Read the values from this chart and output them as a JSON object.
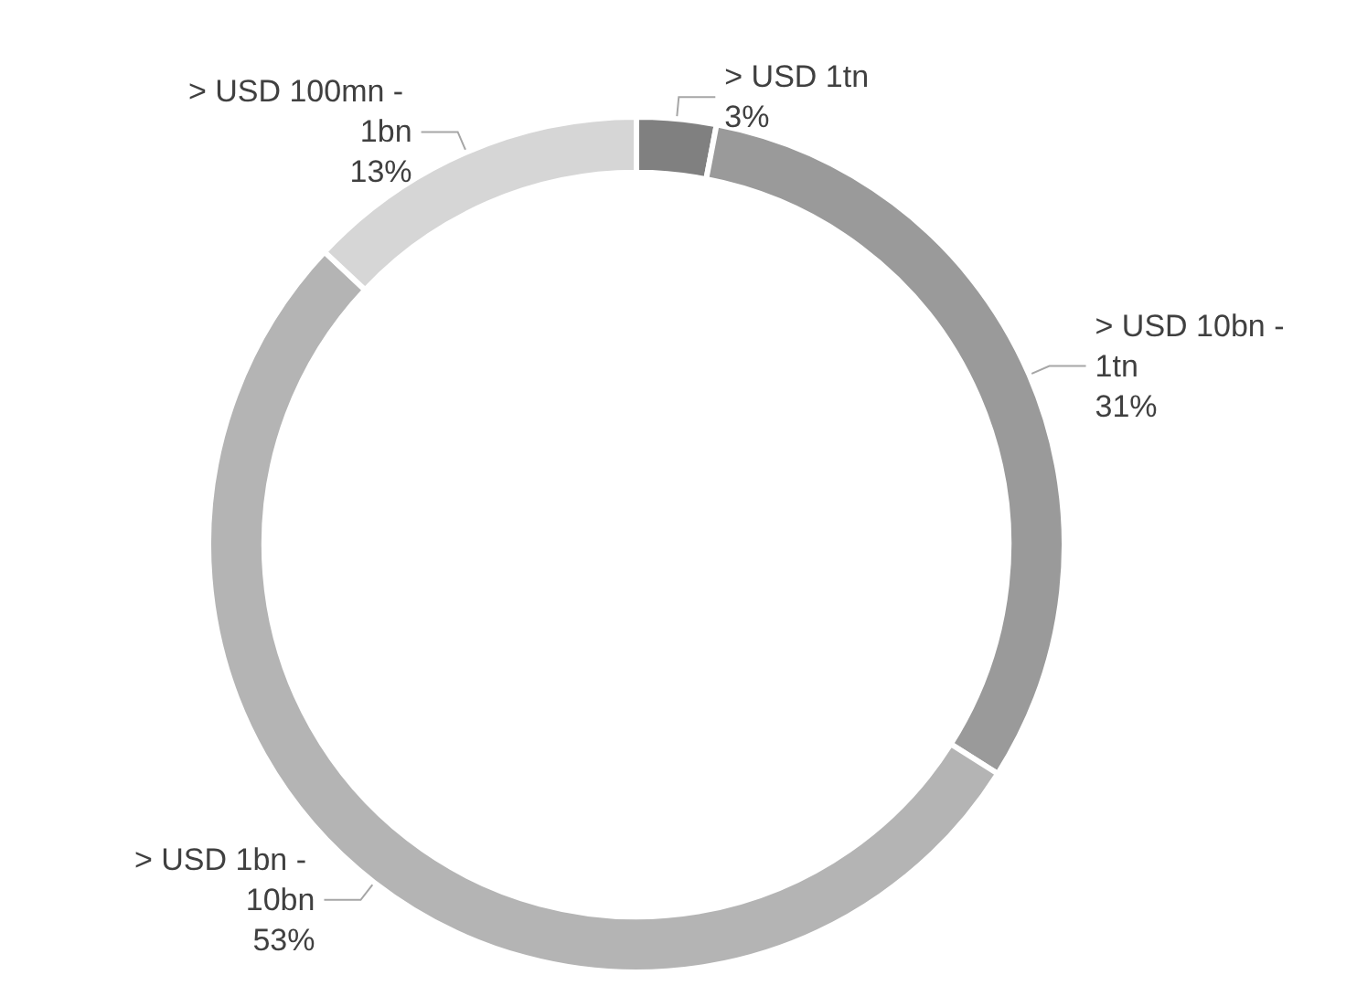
{
  "chart_data": {
    "type": "donut",
    "categories": [
      "> USD 1tn",
      "> USD 10bn - 1tn",
      "> USD 1bn - 10bn",
      "> USD 100mn - 1bn"
    ],
    "values": [
      3,
      31,
      53,
      13
    ],
    "colors": [
      "#808080",
      "#9a9a9a",
      "#b4b4b4",
      "#d6d6d6"
    ],
    "value_labels": [
      "3%",
      "31%",
      "53%",
      "13%"
    ],
    "legend": false
  }
}
